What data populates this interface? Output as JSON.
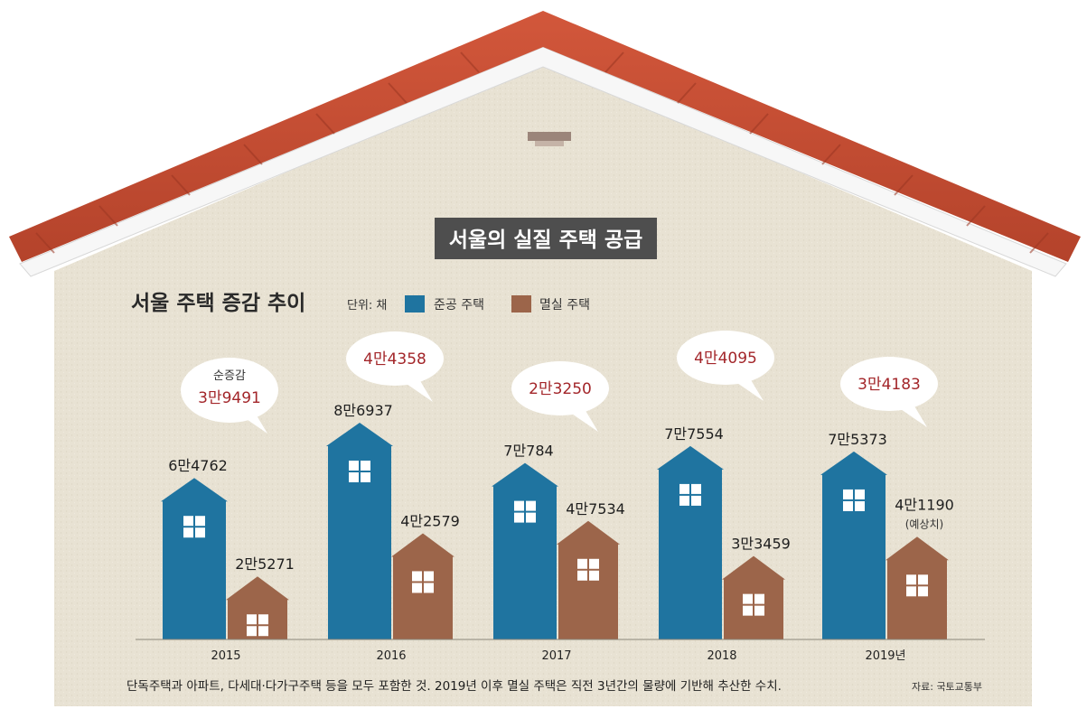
{
  "banner": "서울의 실질 주택 공급",
  "chart_data": {
    "type": "bar",
    "title": "서울 주택 증감 추이",
    "unit": "단위: 채",
    "categories": [
      "2015",
      "2016",
      "2017",
      "2018",
      "2019년"
    ],
    "series": [
      {
        "name": "준공 주택",
        "color": "#1f74a0",
        "values": [
          64762,
          86937,
          70784,
          77554,
          75373
        ],
        "labels": [
          "6만4762",
          "8만6937",
          "7만784",
          "7만7554",
          "7만5373"
        ]
      },
      {
        "name": "멸실 주택",
        "color": "#9c654a",
        "values": [
          25271,
          42579,
          47534,
          33459,
          41190
        ],
        "labels": [
          "2만5271",
          "4만2579",
          "4만7534",
          "3만3459",
          "4만1190"
        ]
      }
    ],
    "net_change": {
      "caption": "순증감",
      "values": [
        39491,
        44358,
        23250,
        44095,
        34183
      ],
      "labels": [
        "3만9491",
        "4만4358",
        "2만3250",
        "4만4095",
        "3만4183"
      ],
      "color": "#a3262a"
    },
    "annotation_2019": "(예상치)"
  },
  "footnote": "단독주택과 아파트, 다세대·다가구주택 등을 모두 포함한 것. 2019년 이후 멸실 주택은 직전 3년간의 물량에 기반해 추산한 수치.",
  "source": "자료: 국토교통부"
}
